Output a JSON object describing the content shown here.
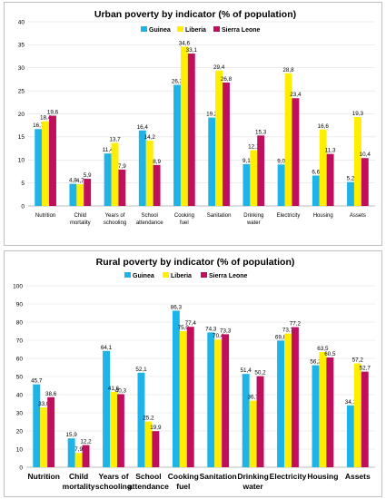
{
  "chart_data": [
    {
      "type": "bar",
      "title": "Urban poverty by indicator (% of population)",
      "categories": [
        [
          "Nutrition"
        ],
        [
          "Child",
          "mortality"
        ],
        [
          "Years of",
          "schooling"
        ],
        [
          "School",
          "attendance"
        ],
        [
          "Cooking",
          "fuel"
        ],
        [
          "Sanitation"
        ],
        [
          "Drinking",
          "water"
        ],
        [
          "Electricity"
        ],
        [
          "Housing"
        ],
        [
          "Assets"
        ]
      ],
      "series": [
        {
          "name": "Guinea",
          "color": "#1fb4e8",
          "values": [
            16.7,
            4.8,
            11.4,
            16.4,
            26.3,
            19.2,
            9.1,
            9.0,
            6.6,
            5.2
          ],
          "labels": [
            "16,7",
            "4,8",
            "11,4",
            "16,4",
            "26,3",
            "19,2",
            "9,1",
            "9,0",
            "6,6",
            "5,2"
          ]
        },
        {
          "name": "Liberia",
          "color": "#ffee00",
          "values": [
            18.4,
            4.7,
            13.7,
            14.2,
            34.6,
            29.4,
            12.1,
            28.8,
            16.6,
            19.3
          ],
          "labels": [
            "18,4",
            "4,7",
            "13,7",
            "14,2",
            "34,6",
            "29,4",
            "12,1",
            "28,8",
            "16,6",
            "19,3"
          ]
        },
        {
          "name": "Sierra Leone",
          "color": "#c0105d",
          "values": [
            19.6,
            5.9,
            7.9,
            8.9,
            33.1,
            26.8,
            15.3,
            23.4,
            11.3,
            10.4
          ],
          "labels": [
            "19,6",
            "5,9",
            "7,9",
            "8,9",
            "33,1",
            "26,8",
            "15,3",
            "23,4",
            "11,3",
            "10,4"
          ]
        }
      ],
      "ylim": [
        0,
        40
      ],
      "yticks": [
        0,
        5,
        10,
        15,
        20,
        25,
        30,
        35,
        40
      ],
      "legend": "top-right",
      "grid": true
    },
    {
      "type": "bar",
      "title": "Rural poverty by indicator (% of population)",
      "categories": [
        [
          "Nutrition"
        ],
        [
          "Child",
          "mortality"
        ],
        [
          "Years of",
          "schooling"
        ],
        [
          "School",
          "attendance"
        ],
        [
          "Cooking",
          "fuel"
        ],
        [
          "Sanitation"
        ],
        [
          "Drinking",
          "water"
        ],
        [
          "Electricity"
        ],
        [
          "Housing"
        ],
        [
          "Assets"
        ]
      ],
      "series": [
        {
          "name": "Guinea",
          "color": "#1fb4e8",
          "values": [
            45.7,
            15.9,
            64.1,
            52.1,
            86.3,
            74.3,
            51.4,
            69.8,
            56.2,
            34.1
          ],
          "labels": [
            "45,7",
            "15,9",
            "64,1",
            "52,1",
            "86,3",
            "74,3",
            "51,4",
            "69,8",
            "56,2",
            "34,1"
          ]
        },
        {
          "name": "Liberia",
          "color": "#ffee00",
          "values": [
            33.0,
            7.9,
            41.6,
            25.2,
            75.0,
            70.4,
            36.7,
            73.7,
            63.5,
            57.2
          ],
          "labels": [
            "33,0",
            "7,9",
            "41,6",
            "25,2",
            "75,0",
            "70,4",
            "36,7",
            "73,7",
            "63,5",
            "57,2"
          ]
        },
        {
          "name": "Sierra Leone",
          "color": "#c0105d",
          "values": [
            38.6,
            12.2,
            40.3,
            19.9,
            77.4,
            73.3,
            50.2,
            77.2,
            60.5,
            52.7
          ],
          "labels": [
            "38,6",
            "12,2",
            "40,3",
            "19,9",
            "77,4",
            "73,3",
            "50,2",
            "77,2",
            "60,5",
            "52,7"
          ]
        }
      ],
      "ylim": [
        0,
        100
      ],
      "yticks": [
        0,
        10,
        20,
        30,
        40,
        50,
        60,
        70,
        80,
        90,
        100
      ],
      "legend": "top-right",
      "grid": true
    }
  ]
}
